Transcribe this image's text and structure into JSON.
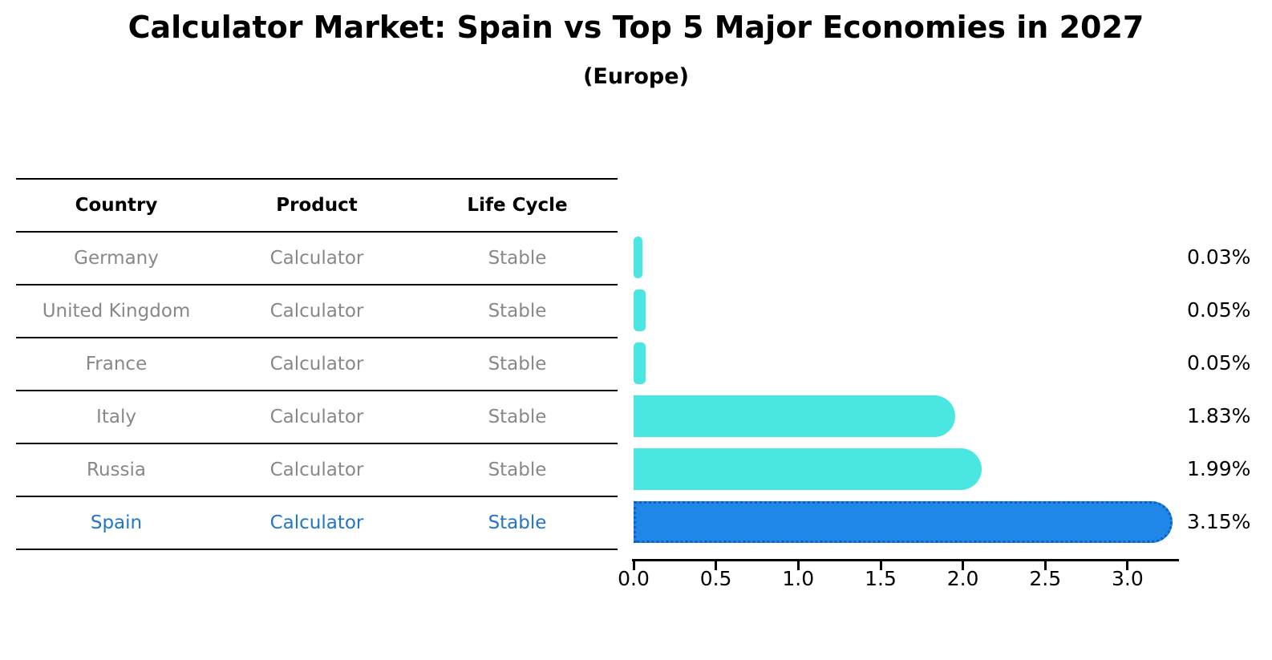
{
  "title": "Calculator Market: Spain vs Top 5 Major Economies in 2027",
  "subtitle": "(Europe)",
  "table": {
    "headers": [
      "Country",
      "Product",
      "Life Cycle"
    ],
    "rows": [
      {
        "country": "Germany",
        "product": "Calculator",
        "life_cycle": "Stable",
        "highlighted": false
      },
      {
        "country": "United Kingdom",
        "product": "Calculator",
        "life_cycle": "Stable",
        "highlighted": false
      },
      {
        "country": "France",
        "product": "Calculator",
        "life_cycle": "Stable",
        "highlighted": false
      },
      {
        "country": "Italy",
        "product": "Calculator",
        "life_cycle": "Stable",
        "highlighted": false
      },
      {
        "country": "Russia",
        "product": "Calculator",
        "life_cycle": "Stable",
        "highlighted": false
      },
      {
        "country": "Spain",
        "product": "Calculator",
        "life_cycle": "Stable",
        "highlighted": true
      }
    ]
  },
  "chart_data": {
    "type": "bar",
    "orientation": "horizontal",
    "title": "Calculator Market: Spain vs Top 5 Major Economies in 2027 (Europe)",
    "categories": [
      "Germany",
      "United Kingdom",
      "France",
      "Italy",
      "Russia",
      "Spain"
    ],
    "values": [
      0.03,
      0.05,
      0.05,
      1.83,
      1.99,
      3.15
    ],
    "value_labels": [
      "0.03%",
      "0.05%",
      "0.05%",
      "1.83%",
      "1.99%",
      "3.15%"
    ],
    "x_ticks": [
      0.0,
      0.5,
      1.0,
      1.5,
      2.0,
      2.5,
      3.0
    ],
    "x_tick_labels": [
      "0.0",
      "0.5",
      "1.0",
      "1.5",
      "2.0",
      "2.5",
      "3.0"
    ],
    "xlim": [
      0,
      3.3
    ],
    "grid": false,
    "legend": "none",
    "highlight_index": 5,
    "highlight_category": "Spain",
    "colors": {
      "bar": "#4AE7E2",
      "highlight_bar": "#1E87E8",
      "highlight_border": "#0F5FC4",
      "highlight_text": "#2176C8",
      "text": "#000000",
      "muted_text": "#888888"
    }
  }
}
